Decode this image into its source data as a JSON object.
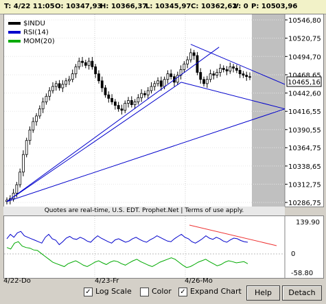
{
  "quote": {
    "time": "T: 4/22 11:05",
    "open": "O: 10347,93",
    "high": "H: 10366,37",
    "low": "L: 10345,97",
    "close": "C: 10362,62",
    "volume": "V: 0",
    "previous": "P: 10503,96"
  },
  "legend": [
    {
      "label": "$INDU",
      "color": "#000000"
    },
    {
      "label": "RSI(14)",
      "color": "#0000cc"
    },
    {
      "label": "MOM(20)",
      "color": "#00aa00"
    }
  ],
  "price_axis_labels": [
    "10546,80",
    "10520,75",
    "10494,70",
    "10468,65",
    "10442,60",
    "10416,55",
    "10390,55",
    "10364,75",
    "10338,65",
    "10312,75",
    "10286,75"
  ],
  "last_price_label": "10465,16",
  "notice": "Quotes are real-time, U.S. EDT. Prophet.Net | Terms of use apply.",
  "indicator_axis": {
    "top": "139.90",
    "zero": "0",
    "bottom": "-58.80"
  },
  "date_labels": [
    "4/22-Do",
    "4/23-Fr",
    "4/26-Mo"
  ],
  "controls": {
    "log_scale": {
      "label": "Log Scale",
      "checked": true
    },
    "color": {
      "label": "Color",
      "checked": false
    },
    "expand_chart": {
      "label": "Expand Chart",
      "checked": true
    },
    "help": "Help",
    "detach": "Detach"
  },
  "chart_data": [
    {
      "type": "candlestick",
      "series_name": "$INDU",
      "x": [
        "4/22-Do",
        "4/23-Fr",
        "4/26-Mo"
      ],
      "ylim": [
        10286.75,
        10546.8
      ],
      "y_ticks": [
        10546.8,
        10520.75,
        10494.7,
        10468.65,
        10442.6,
        10416.55,
        10390.55,
        10364.75,
        10338.65,
        10312.75,
        10286.75
      ],
      "last_value": 10465.16,
      "closes": [
        10290,
        10292,
        10300,
        10312,
        10330,
        10355,
        10375,
        10390,
        10402,
        10410,
        10420,
        10430,
        10438,
        10446,
        10452,
        10456,
        10450,
        10455,
        10460,
        10462,
        10470,
        10480,
        10488,
        10486,
        10482,
        10488,
        10480,
        10470,
        10460,
        10450,
        10440,
        10435,
        10430,
        10425,
        10420,
        10418,
        10428,
        10432,
        10426,
        10430,
        10436,
        10442,
        10440,
        10446,
        10452,
        10456,
        10460,
        10452,
        10462,
        10470,
        10466,
        10458,
        10468,
        10476,
        10484,
        10490,
        10500,
        10496,
        10472,
        10462,
        10456,
        10462,
        10470,
        10468,
        10472,
        10478,
        10476,
        10474,
        10480,
        10478,
        10475,
        10470,
        10468,
        10466,
        10465
      ],
      "trendlines": "drawn fan lines from the 4/22 low and from the 4/26 high"
    },
    {
      "type": "line",
      "series": [
        {
          "name": "RSI(14)",
          "values": [
            70,
            85,
            75,
            90,
            95,
            80,
            75,
            70,
            65,
            60,
            55,
            75,
            85,
            70,
            65,
            50,
            60,
            72,
            78,
            70,
            68,
            75,
            70,
            62,
            58,
            70,
            80,
            72,
            66,
            60,
            55,
            66,
            70,
            64,
            58,
            62,
            70,
            75,
            68,
            62,
            58,
            66,
            72,
            80,
            74,
            68,
            62,
            60,
            70,
            78,
            85,
            75,
            70,
            60,
            55,
            62,
            70,
            80,
            72,
            68,
            75,
            70,
            62,
            58,
            66,
            72,
            70,
            64,
            60,
            58
          ]
        },
        {
          "name": "MOM(20)",
          "values": [
            40,
            35,
            55,
            60,
            45,
            40,
            38,
            32,
            30,
            20,
            10,
            0,
            -10,
            -15,
            -20,
            -25,
            -15,
            -10,
            -5,
            -12,
            -20,
            -25,
            -18,
            -10,
            -5,
            -12,
            -18,
            -10,
            -5,
            -8,
            -15,
            -20,
            -12,
            -5,
            0,
            -8,
            -14,
            -20,
            -25,
            -18,
            -10,
            -5,
            0,
            5,
            0,
            -10,
            -20,
            -28,
            -25,
            -18,
            -10,
            -5,
            0,
            -8,
            -15,
            -22,
            -18,
            -10,
            -5,
            -8,
            -12,
            -10,
            -8,
            -15
          ]
        }
      ],
      "ylim": [
        -58.8,
        139.9
      ]
    }
  ]
}
